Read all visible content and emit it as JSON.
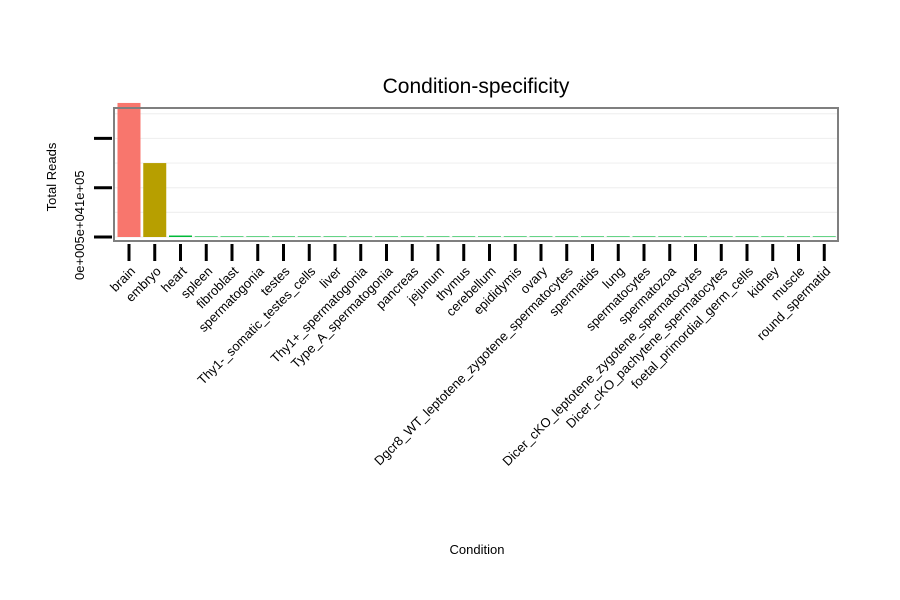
{
  "chart_data": {
    "type": "bar",
    "title": "Condition-specificity",
    "xlabel": "Condition",
    "ylabel": "Total Reads",
    "ylim": [
      0,
      140000
    ],
    "y_ticks": [
      0,
      50000,
      100000
    ],
    "y_tick_labels": [
      "0e+00",
      "5e+04",
      "1e+05"
    ],
    "categories": [
      "brain",
      "embryo",
      "heart",
      "spleen",
      "fibroblast",
      "spermatogonia",
      "testes",
      "Thy1-_somatic_testes_cells",
      "liver",
      "Thy1+_spermatogonia",
      "Type_A_spermatogonia",
      "pancreas",
      "jejunum",
      "thymus",
      "cerebellum",
      "epididymis",
      "ovary",
      "Dgcr8_WT_leptotene_zygotene_spermatocytes",
      "spermatids",
      "lung",
      "spermatocytes",
      "spermatozoa",
      "Dicer_cKO_leptotene_zygotene_spermatocytes",
      "Dicer_cKO_pachytene_spermatocytes",
      "foetal_primordial_germ_cells",
      "kidney",
      "muscle",
      "round_spermatid"
    ],
    "values": [
      136000,
      75000,
      1500,
      200,
      100,
      100,
      100,
      100,
      100,
      100,
      100,
      100,
      100,
      100,
      100,
      100,
      100,
      100,
      100,
      100,
      100,
      100,
      100,
      100,
      100,
      100,
      100,
      100
    ],
    "colors": [
      "#F8766D",
      "#B79F00",
      "#00BA38"
    ],
    "grid": true,
    "legend": "none"
  }
}
